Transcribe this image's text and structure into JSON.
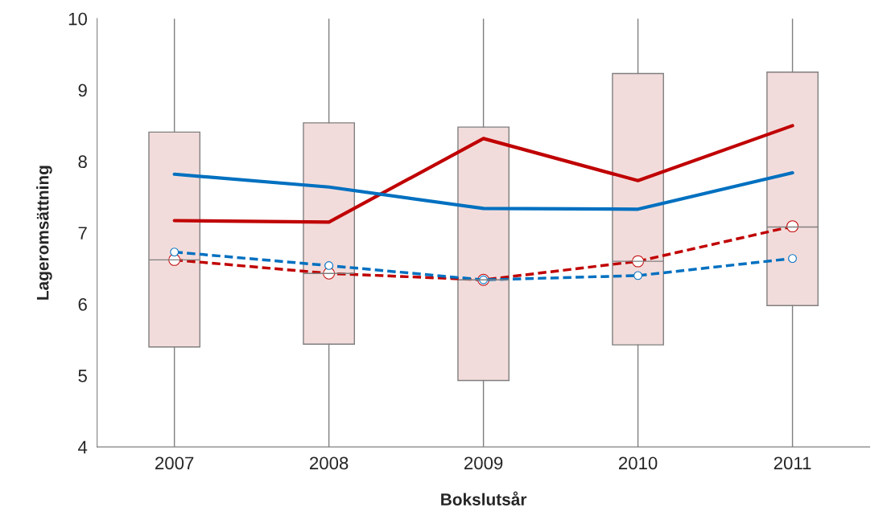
{
  "chart_data": {
    "type": "box",
    "xlabel": "Bokslutsår",
    "ylabel": "Lageromsättning",
    "categories": [
      "2007",
      "2008",
      "2009",
      "2010",
      "2011"
    ],
    "color": "#f2dcdb",
    "boxes": [
      {
        "low": 4,
        "q1": 5.4,
        "median": 6.62,
        "q3": 8.41,
        "high": 10
      },
      {
        "low": 4,
        "q1": 5.44,
        "median": 6.43,
        "q3": 8.54,
        "high": 10
      },
      {
        "low": 4,
        "q1": 4.93,
        "median": 6.34,
        "q3": 8.48,
        "high": 10
      },
      {
        "low": 4,
        "q1": 5.43,
        "median": 6.6,
        "q3": 9.23,
        "high": 10
      },
      {
        "low": 4,
        "q1": 5.98,
        "median": 7.08,
        "q3": 9.25,
        "high": 10
      }
    ],
    "series": [
      {
        "type": "line",
        "color": "#c00000",
        "line_style": "solid",
        "marker": "none",
        "values": [
          7.17,
          7.15,
          8.32,
          7.73,
          8.5
        ]
      },
      {
        "type": "line",
        "color": "#0070c0",
        "line_style": "solid",
        "marker": "none",
        "values": [
          7.82,
          7.64,
          7.34,
          7.33,
          7.84
        ]
      },
      {
        "type": "line",
        "color": "#c00000",
        "line_style": "dashed",
        "marker": "circle",
        "values": [
          6.62,
          6.43,
          6.34,
          6.6,
          7.09
        ]
      },
      {
        "type": "line",
        "color": "#0070c0",
        "line_style": "dashed",
        "marker": "circle",
        "values": [
          6.73,
          6.54,
          6.34,
          6.4,
          6.64
        ]
      }
    ],
    "ylim": [
      4,
      10
    ],
    "yticks": [
      4,
      5,
      6,
      7,
      8,
      9,
      10
    ],
    "grid": false,
    "legend": false
  }
}
